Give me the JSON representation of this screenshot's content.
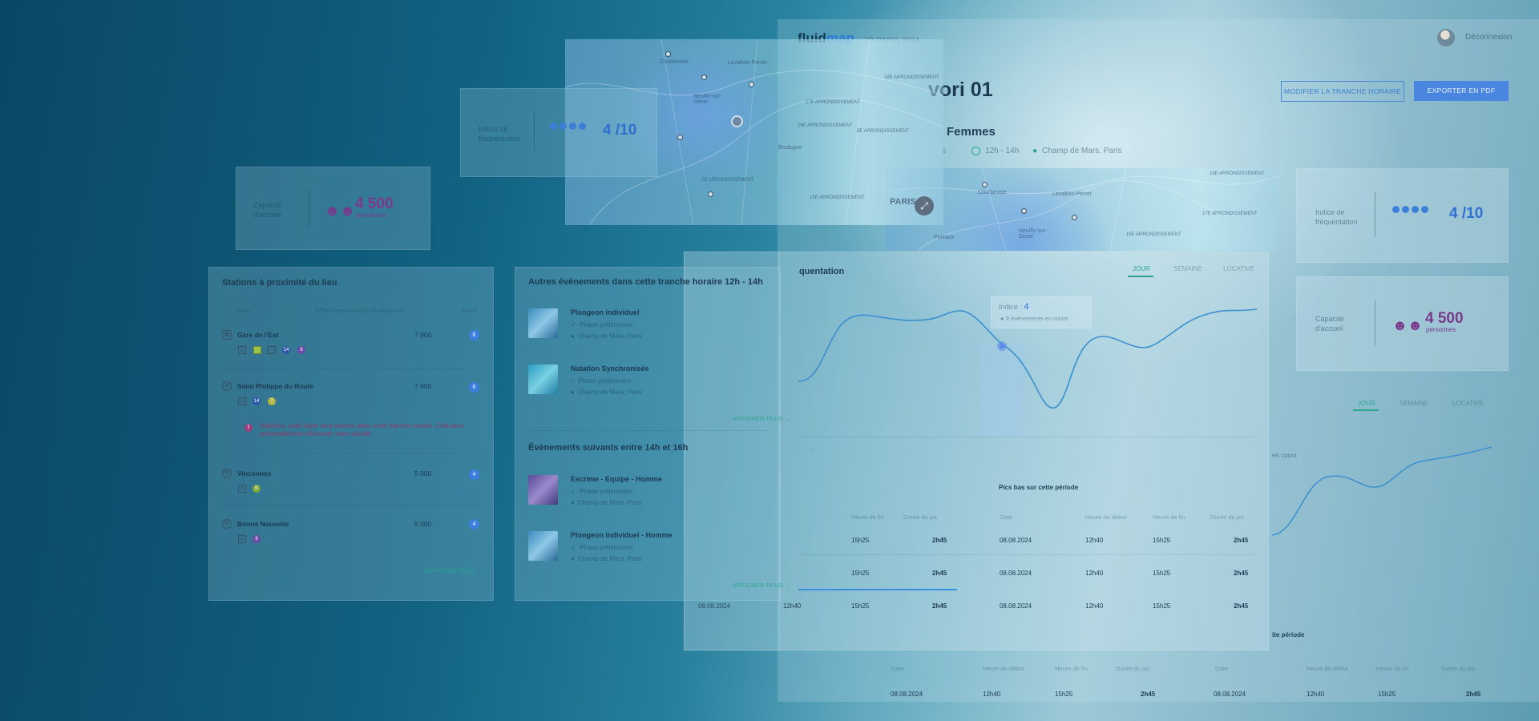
{
  "app": {
    "logo_main": "fluid",
    "logo_accent": "map",
    "logo_sub": "JO PARIS 2024",
    "logout": "Déconnexion",
    "title_partial": "vori 01",
    "subtitle_partial": "Femmes",
    "meta_time": "12h - 14h",
    "meta_place": "Champ de Mars, Paris",
    "btn_modify": "MODIFIER LA TRANCHE HORAIRE",
    "btn_export": "EXPORTER EN PDF"
  },
  "map_top": {
    "cities": [
      "Courbevoie",
      "Levallois-Perret",
      "Neuilly-sur-Seine",
      "Boulogne",
      "Puteaux"
    ],
    "districts": [
      "17E ARRONDISSEMENT",
      "16E ARRONDISSEMENT",
      "8E ARRONDISSEMENT",
      "18E ARRONDISSEMENT",
      "15E ARRONDISSEMENT",
      "7E ARRONDISSEMENT"
    ],
    "paris_label": "PARIS"
  },
  "map_right": {
    "cities": [
      "Courbevoie",
      "Levallois-Perret",
      "Neuilly-sur-Seine",
      "Puteaux"
    ],
    "districts": [
      "18E ARRONDISSEMENT",
      "17E ARRONDISSEMENT",
      "16E ARRONDISSEMENT"
    ]
  },
  "stats": {
    "freq_label_1": "Indice de",
    "freq_label_2": "fréquentation",
    "freq_value": "4 /10",
    "cap_label_1": "Capacité",
    "cap_label_2": "d'accueil",
    "cap_value": "4 500",
    "cap_unit": "personnes",
    "freq_level": 4
  },
  "stations": {
    "title": "Stations à proximité du lieu",
    "col_gare": "Gare",
    "col_affl": "Affluence potentielle d'utilisateurs",
    "col_indice": "Indice",
    "items": [
      {
        "name": "Gare de l'Est",
        "value": "7 900",
        "badge": "6",
        "lines": [
          "4",
          "5",
          "7",
          "14",
          "8"
        ]
      },
      {
        "name": "Saint Philippe du Roule",
        "value": "7 900",
        "badge": "6",
        "lines": [
          "4",
          "14",
          "7"
        ]
      },
      {
        "name": "Vincennes",
        "value": "5 000",
        "badge": "4",
        "lines": [
          "A",
          "B"
        ]
      },
      {
        "name": "Bonne Nouvelle",
        "value": "5 000",
        "badge": "4",
        "lines": [
          "8",
          "9"
        ]
      }
    ],
    "warning": "Attention, cette ligne sera saturée dans votre tranche horaire. Cela peut potentiellement influencer votre activité.",
    "more": "AFFICHER PLUS"
  },
  "events": {
    "title_other": "Autres évènements dans cette tranche horaire 12h - 14h",
    "title_next": "Évènements suivants entre 14h et 16h",
    "other": [
      {
        "name": "Plongeon individuel",
        "phase": "Phase préliminaire",
        "place": "Champ de Mars, Paris"
      },
      {
        "name": "Natation Synchronisée",
        "phase": "Phase préliminaire",
        "place": "Champ de Mars, Paris"
      }
    ],
    "next": [
      {
        "name": "Escrime - Equipe - Homme",
        "phase": "Phase préliminaire",
        "place": "Champ de Mars, Paris"
      },
      {
        "name": "Plongeon individuel - Homme",
        "phase": "Phase préliminaire",
        "place": "Champ de Mars, Paris"
      }
    ],
    "more": "AFFICHER PLUS"
  },
  "chart": {
    "title_partial": "quentation",
    "tabs": [
      "JOUR",
      "SEMAINE",
      "LOCATIVE"
    ],
    "tooltip_label": "Indice :",
    "tooltip_value": "4",
    "tooltip_events": "3 évènements en cours",
    "peaks_title": "Pics bas sur cette période",
    "partial_label": "en cours",
    "second_title_partial": "ite période"
  },
  "table": {
    "head": [
      "Date",
      "Heure de début",
      "Heure de fin",
      "Durée du pic"
    ],
    "rows": [
      [
        "08.08.2024",
        "12h40",
        "15h25",
        "2h45"
      ],
      [
        "08.08.2024",
        "12h40",
        "15h25",
        "2h45"
      ],
      [
        "08.08.2024",
        "12h40",
        "15h25",
        "2h45"
      ]
    ]
  },
  "colors": {
    "accent": "#2aa58f",
    "primary": "#3b7fe0",
    "purple": "#7a3a8c"
  }
}
